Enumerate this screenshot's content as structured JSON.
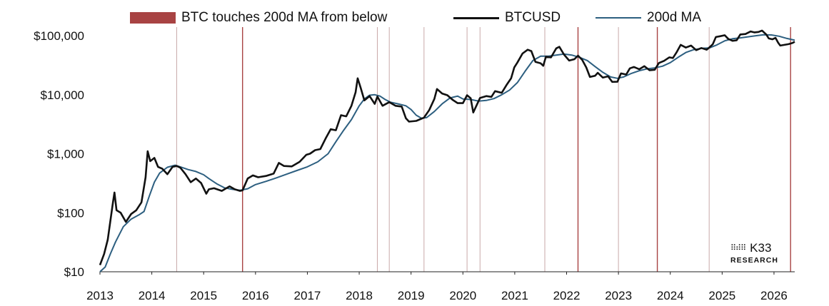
{
  "legend": {
    "touches_label": "BTC touches 200d MA from below",
    "btc_label": "BTCUSD",
    "ma_label": "200d MA"
  },
  "logo": {
    "name": "K33",
    "sub": "RESEARCH",
    "mark": "⠿⠾⠿"
  },
  "colors": {
    "touch": "#a84343",
    "touch_thin": "#c9a9a9",
    "btc": "#111111",
    "ma": "#2d5f80"
  },
  "chart_data": {
    "type": "line",
    "title": "",
    "xlabel": "",
    "ylabel": "",
    "y_scale": "log",
    "ylim": [
      10,
      140000
    ],
    "xlim": [
      2013.0,
      2026.4
    ],
    "y_ticks": [
      10,
      100,
      1000,
      10000,
      100000
    ],
    "y_tick_labels": [
      "$10",
      "$100",
      "$1,000",
      "$10,000",
      "$100,000"
    ],
    "x_ticks": [
      2013,
      2014,
      2015,
      2016,
      2017,
      2018,
      2019,
      2020,
      2021,
      2022,
      2023,
      2024,
      2025,
      2026
    ],
    "x_tick_labels": [
      "2013",
      "2014",
      "2015",
      "2016",
      "2017",
      "2018",
      "2019",
      "2020",
      "2021",
      "2022",
      "2023",
      "2024",
      "2025",
      "2026"
    ],
    "grid": false,
    "legend_position": "top",
    "touch_events": [
      {
        "x": 2014.48,
        "style": "thin"
      },
      {
        "x": 2015.75,
        "style": "strong"
      },
      {
        "x": 2018.35,
        "style": "thin"
      },
      {
        "x": 2018.58,
        "style": "thin"
      },
      {
        "x": 2019.25,
        "style": "thin"
      },
      {
        "x": 2020.08,
        "style": "thin"
      },
      {
        "x": 2020.33,
        "style": "thin"
      },
      {
        "x": 2021.58,
        "style": "thin"
      },
      {
        "x": 2022.22,
        "style": "strong"
      },
      {
        "x": 2023.0,
        "style": "thin"
      },
      {
        "x": 2023.75,
        "style": "strong"
      },
      {
        "x": 2024.75,
        "style": "thin"
      },
      {
        "x": 2026.32,
        "style": "strong"
      }
    ],
    "series": [
      {
        "name": "BTCUSD",
        "points": [
          [
            2013.0,
            13
          ],
          [
            2013.08,
            20
          ],
          [
            2013.15,
            35
          ],
          [
            2013.25,
            150
          ],
          [
            2013.28,
            220
          ],
          [
            2013.32,
            110
          ],
          [
            2013.4,
            100
          ],
          [
            2013.5,
            70
          ],
          [
            2013.6,
            95
          ],
          [
            2013.7,
            110
          ],
          [
            2013.8,
            150
          ],
          [
            2013.88,
            400
          ],
          [
            2013.92,
            1100
          ],
          [
            2013.97,
            750
          ],
          [
            2014.05,
            850
          ],
          [
            2014.12,
            600
          ],
          [
            2014.2,
            560
          ],
          [
            2014.3,
            450
          ],
          [
            2014.4,
            600
          ],
          [
            2014.48,
            620
          ],
          [
            2014.55,
            580
          ],
          [
            2014.65,
            450
          ],
          [
            2014.75,
            330
          ],
          [
            2014.85,
            380
          ],
          [
            2014.95,
            320
          ],
          [
            2015.05,
            210
          ],
          [
            2015.1,
            250
          ],
          [
            2015.2,
            260
          ],
          [
            2015.35,
            235
          ],
          [
            2015.5,
            280
          ],
          [
            2015.6,
            250
          ],
          [
            2015.7,
            235
          ],
          [
            2015.75,
            240
          ],
          [
            2015.85,
            380
          ],
          [
            2015.95,
            430
          ],
          [
            2016.05,
            400
          ],
          [
            2016.2,
            420
          ],
          [
            2016.35,
            460
          ],
          [
            2016.45,
            700
          ],
          [
            2016.55,
            620
          ],
          [
            2016.7,
            610
          ],
          [
            2016.85,
            730
          ],
          [
            2016.98,
            960
          ],
          [
            2017.05,
            1000
          ],
          [
            2017.15,
            1150
          ],
          [
            2017.25,
            1200
          ],
          [
            2017.35,
            1800
          ],
          [
            2017.45,
            2600
          ],
          [
            2017.55,
            2500
          ],
          [
            2017.65,
            4500
          ],
          [
            2017.75,
            4300
          ],
          [
            2017.85,
            6500
          ],
          [
            2017.93,
            11000
          ],
          [
            2017.97,
            19000
          ],
          [
            2018.03,
            13000
          ],
          [
            2018.1,
            8000
          ],
          [
            2018.2,
            9500
          ],
          [
            2018.3,
            7000
          ],
          [
            2018.35,
            9300
          ],
          [
            2018.45,
            6500
          ],
          [
            2018.58,
            7500
          ],
          [
            2018.7,
            6500
          ],
          [
            2018.82,
            6300
          ],
          [
            2018.9,
            4000
          ],
          [
            2018.96,
            3500
          ],
          [
            2019.1,
            3600
          ],
          [
            2019.25,
            4100
          ],
          [
            2019.35,
            5500
          ],
          [
            2019.45,
            8500
          ],
          [
            2019.5,
            12500
          ],
          [
            2019.6,
            10500
          ],
          [
            2019.7,
            9800
          ],
          [
            2019.8,
            8200
          ],
          [
            2019.9,
            7200
          ],
          [
            2020.0,
            7200
          ],
          [
            2020.08,
            9800
          ],
          [
            2020.15,
            8700
          ],
          [
            2020.2,
            5000
          ],
          [
            2020.33,
            8800
          ],
          [
            2020.45,
            9500
          ],
          [
            2020.55,
            9200
          ],
          [
            2020.62,
            11500
          ],
          [
            2020.75,
            10800
          ],
          [
            2020.85,
            15000
          ],
          [
            2020.93,
            19000
          ],
          [
            2020.99,
            29000
          ],
          [
            2021.05,
            35000
          ],
          [
            2021.15,
            50000
          ],
          [
            2021.25,
            58000
          ],
          [
            2021.32,
            55000
          ],
          [
            2021.4,
            36000
          ],
          [
            2021.5,
            34000
          ],
          [
            2021.55,
            31000
          ],
          [
            2021.6,
            44000
          ],
          [
            2021.7,
            43000
          ],
          [
            2021.8,
            61000
          ],
          [
            2021.86,
            65000
          ],
          [
            2021.95,
            48000
          ],
          [
            2022.05,
            38000
          ],
          [
            2022.15,
            40000
          ],
          [
            2022.22,
            46000
          ],
          [
            2022.3,
            39000
          ],
          [
            2022.38,
            29000
          ],
          [
            2022.45,
            20000
          ],
          [
            2022.55,
            21000
          ],
          [
            2022.6,
            23500
          ],
          [
            2022.7,
            19500
          ],
          [
            2022.8,
            20500
          ],
          [
            2022.88,
            16500
          ],
          [
            2022.98,
            16600
          ],
          [
            2023.05,
            23000
          ],
          [
            2023.15,
            22000
          ],
          [
            2023.22,
            28000
          ],
          [
            2023.3,
            29500
          ],
          [
            2023.4,
            27000
          ],
          [
            2023.5,
            30500
          ],
          [
            2023.6,
            26000
          ],
          [
            2023.7,
            26500
          ],
          [
            2023.78,
            34500
          ],
          [
            2023.88,
            37500
          ],
          [
            2023.98,
            43000
          ],
          [
            2024.05,
            42000
          ],
          [
            2024.12,
            52000
          ],
          [
            2024.2,
            70000
          ],
          [
            2024.3,
            63000
          ],
          [
            2024.4,
            68000
          ],
          [
            2024.5,
            57000
          ],
          [
            2024.6,
            62000
          ],
          [
            2024.7,
            58000
          ],
          [
            2024.75,
            63000
          ],
          [
            2024.82,
            72000
          ],
          [
            2024.88,
            95000
          ],
          [
            2024.96,
            98000
          ],
          [
            2025.05,
            102000
          ],
          [
            2025.12,
            88000
          ],
          [
            2025.2,
            82000
          ],
          [
            2025.28,
            84000
          ],
          [
            2025.35,
            105000
          ],
          [
            2025.45,
            107000
          ],
          [
            2025.55,
            118000
          ],
          [
            2025.62,
            114000
          ],
          [
            2025.7,
            116000
          ],
          [
            2025.77,
            122000
          ],
          [
            2025.85,
            105000
          ],
          [
            2025.9,
            90000
          ],
          [
            2025.97,
            87000
          ],
          [
            2026.03,
            92000
          ],
          [
            2026.08,
            76000
          ],
          [
            2026.12,
            68000
          ],
          [
            2026.2,
            70000
          ],
          [
            2026.28,
            72000
          ],
          [
            2026.35,
            75000
          ],
          [
            2026.4,
            79000
          ]
        ]
      },
      {
        "name": "200d MA",
        "points": [
          [
            2013.0,
            10
          ],
          [
            2013.1,
            12
          ],
          [
            2013.2,
            20
          ],
          [
            2013.3,
            32
          ],
          [
            2013.45,
            58
          ],
          [
            2013.6,
            78
          ],
          [
            2013.75,
            92
          ],
          [
            2013.85,
            105
          ],
          [
            2013.95,
            190
          ],
          [
            2014.05,
            330
          ],
          [
            2014.15,
            470
          ],
          [
            2014.3,
            590
          ],
          [
            2014.45,
            640
          ],
          [
            2014.55,
            600
          ],
          [
            2014.7,
            540
          ],
          [
            2014.85,
            500
          ],
          [
            2015.0,
            440
          ],
          [
            2015.1,
            380
          ],
          [
            2015.25,
            310
          ],
          [
            2015.4,
            265
          ],
          [
            2015.55,
            250
          ],
          [
            2015.7,
            240
          ],
          [
            2015.85,
            255
          ],
          [
            2016.0,
            300
          ],
          [
            2016.2,
            340
          ],
          [
            2016.4,
            390
          ],
          [
            2016.6,
            450
          ],
          [
            2016.8,
            520
          ],
          [
            2017.0,
            600
          ],
          [
            2017.2,
            730
          ],
          [
            2017.4,
            1000
          ],
          [
            2017.55,
            1600
          ],
          [
            2017.7,
            2500
          ],
          [
            2017.85,
            3800
          ],
          [
            2018.0,
            6500
          ],
          [
            2018.1,
            8500
          ],
          [
            2018.2,
            9800
          ],
          [
            2018.3,
            10000
          ],
          [
            2018.4,
            9500
          ],
          [
            2018.5,
            8300
          ],
          [
            2018.6,
            7500
          ],
          [
            2018.75,
            7000
          ],
          [
            2018.9,
            6500
          ],
          [
            2019.0,
            5600
          ],
          [
            2019.1,
            4500
          ],
          [
            2019.2,
            4000
          ],
          [
            2019.3,
            4100
          ],
          [
            2019.45,
            5200
          ],
          [
            2019.6,
            7000
          ],
          [
            2019.75,
            8800
          ],
          [
            2019.9,
            9500
          ],
          [
            2020.0,
            8500
          ],
          [
            2020.15,
            8300
          ],
          [
            2020.3,
            7800
          ],
          [
            2020.45,
            8000
          ],
          [
            2020.6,
            8600
          ],
          [
            2020.75,
            10000
          ],
          [
            2020.9,
            12000
          ],
          [
            2021.05,
            16000
          ],
          [
            2021.2,
            25000
          ],
          [
            2021.35,
            38000
          ],
          [
            2021.5,
            45000
          ],
          [
            2021.65,
            45000
          ],
          [
            2021.8,
            47000
          ],
          [
            2021.95,
            49000
          ],
          [
            2022.1,
            47000
          ],
          [
            2022.25,
            43000
          ],
          [
            2022.4,
            38000
          ],
          [
            2022.55,
            30000
          ],
          [
            2022.7,
            24000
          ],
          [
            2022.85,
            20000
          ],
          [
            2022.98,
            19000
          ],
          [
            2023.1,
            20000
          ],
          [
            2023.25,
            23000
          ],
          [
            2023.4,
            25500
          ],
          [
            2023.55,
            27500
          ],
          [
            2023.7,
            28500
          ],
          [
            2023.85,
            30500
          ],
          [
            2024.0,
            35000
          ],
          [
            2024.15,
            43000
          ],
          [
            2024.3,
            52000
          ],
          [
            2024.45,
            58000
          ],
          [
            2024.6,
            61000
          ],
          [
            2024.75,
            62000
          ],
          [
            2024.9,
            70000
          ],
          [
            2025.05,
            82000
          ],
          [
            2025.2,
            89000
          ],
          [
            2025.35,
            92000
          ],
          [
            2025.5,
            96000
          ],
          [
            2025.65,
            100000
          ],
          [
            2025.8,
            104000
          ],
          [
            2025.95,
            103000
          ],
          [
            2026.1,
            98000
          ],
          [
            2026.25,
            90000
          ],
          [
            2026.4,
            84000
          ]
        ]
      }
    ]
  }
}
